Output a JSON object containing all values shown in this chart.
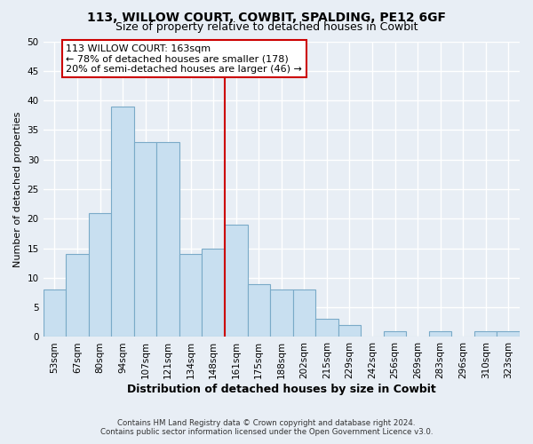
{
  "title": "113, WILLOW COURT, COWBIT, SPALDING, PE12 6GF",
  "subtitle": "Size of property relative to detached houses in Cowbit",
  "xlabel": "Distribution of detached houses by size in Cowbit",
  "ylabel": "Number of detached properties",
  "bar_labels": [
    "53sqm",
    "67sqm",
    "80sqm",
    "94sqm",
    "107sqm",
    "121sqm",
    "134sqm",
    "148sqm",
    "161sqm",
    "175sqm",
    "188sqm",
    "202sqm",
    "215sqm",
    "229sqm",
    "242sqm",
    "256sqm",
    "269sqm",
    "283sqm",
    "296sqm",
    "310sqm",
    "323sqm"
  ],
  "bar_values": [
    8,
    14,
    21,
    39,
    33,
    33,
    14,
    15,
    19,
    9,
    8,
    8,
    3,
    2,
    0,
    1,
    0,
    1,
    0,
    1,
    1
  ],
  "bar_color": "#c8dff0",
  "bar_edge_color": "#7aaac8",
  "vline_index": 8,
  "vline_color": "#cc0000",
  "annotation_title": "113 WILLOW COURT: 163sqm",
  "annotation_line1": "← 78% of detached houses are smaller (178)",
  "annotation_line2": "20% of semi-detached houses are larger (46) →",
  "annotation_box_color": "#ffffff",
  "annotation_box_edge": "#cc0000",
  "ylim": [
    0,
    50
  ],
  "yticks": [
    0,
    5,
    10,
    15,
    20,
    25,
    30,
    35,
    40,
    45,
    50
  ],
  "footer_line1": "Contains HM Land Registry data © Crown copyright and database right 2024.",
  "footer_line2": "Contains public sector information licensed under the Open Government Licence v3.0.",
  "background_color": "#e8eef5",
  "grid_color": "#ffffff",
  "title_fontsize": 10,
  "subtitle_fontsize": 9,
  "xlabel_fontsize": 9,
  "ylabel_fontsize": 8,
  "tick_fontsize": 7.5
}
